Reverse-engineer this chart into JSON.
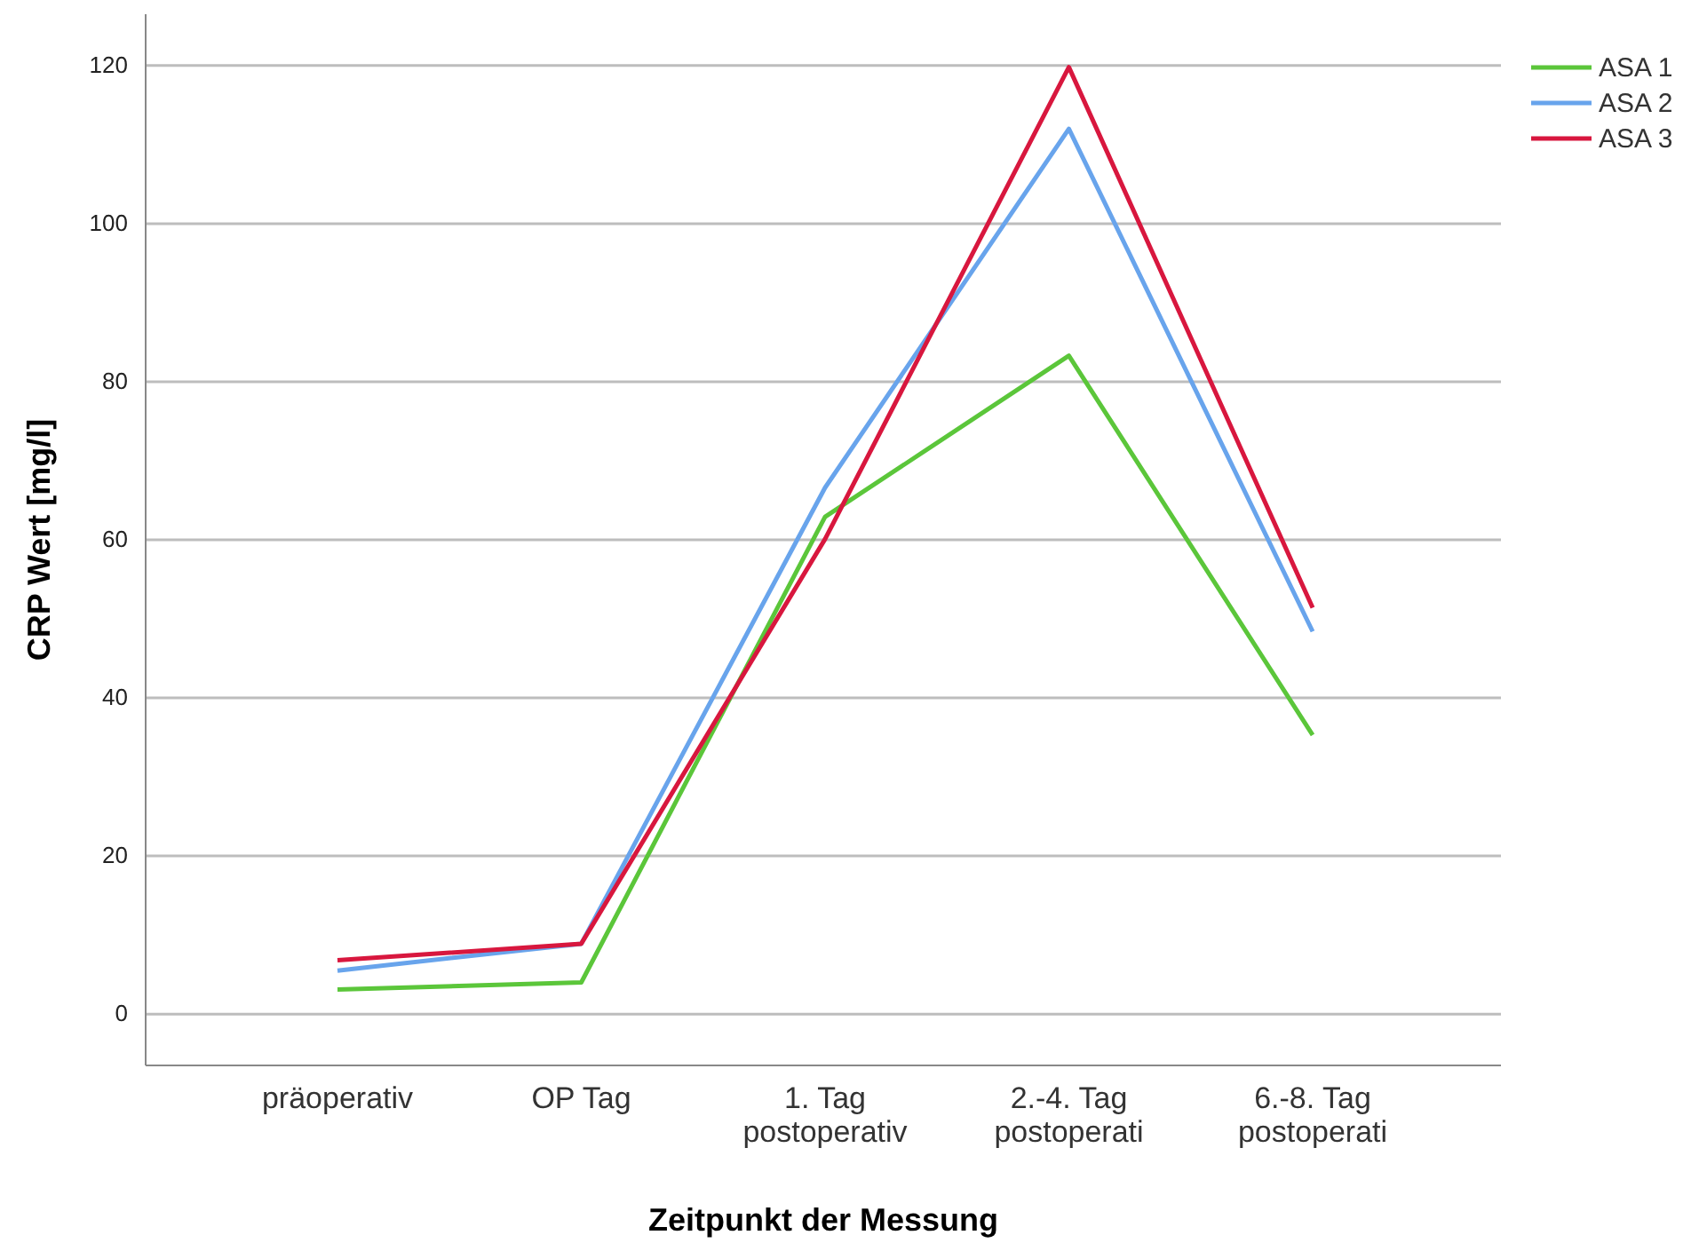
{
  "chart_data": {
    "type": "line",
    "xlabel": "Zeitpunkt der Messung",
    "ylabel": "CRP Wert [mg/l]",
    "categories": [
      "präoperativ",
      "OP Tag",
      "1. Tag postoperativ",
      "2.-4. Tag postoperati",
      "6.-8. Tag postoperati"
    ],
    "series": [
      {
        "name": "ASA 1",
        "color": "#5bc63a",
        "values": [
          3.1,
          4.0,
          62.9,
          83.3,
          35.3
        ]
      },
      {
        "name": "ASA 2",
        "color": "#68a4ec",
        "values": [
          5.5,
          8.9,
          66.6,
          112,
          48.4
        ]
      },
      {
        "name": "ASA 3",
        "color": "#d8173e",
        "values": [
          6.8,
          8.9,
          60.1,
          119.8,
          51.4
        ]
      }
    ],
    "ylim": [
      -6.5,
      126.5
    ],
    "yticks": [
      0,
      20,
      40,
      60,
      80,
      100,
      120
    ],
    "grid": "y",
    "legend": "top right",
    "marker": "none",
    "line_style": "solid"
  }
}
